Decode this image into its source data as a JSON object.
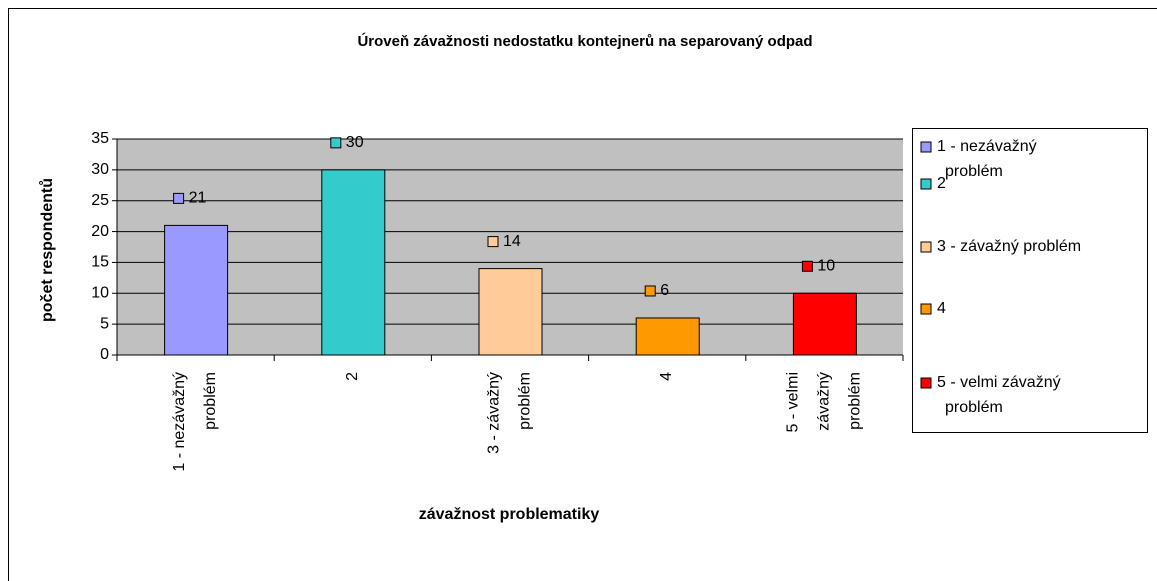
{
  "chart_data": {
    "type": "bar",
    "title": "Úroveň závažnosti nedostatku kontejnerů na separovaný odpad",
    "x_label": "závažnost problematiky",
    "y_label": "počet respondentů",
    "categories": [
      "1 - nezávažný problém",
      "2",
      "3 - závažný problém",
      "4",
      "5 - velmi závažný problém"
    ],
    "values": [
      21,
      30,
      14,
      6,
      10
    ],
    "colors": [
      "#9999ff",
      "#33cccc",
      "#ffcc99",
      "#ff9900",
      "#ff0000"
    ],
    "ylim": [
      0,
      35
    ],
    "yticks": [
      0,
      5,
      10,
      15,
      20,
      25,
      30,
      35
    ],
    "grid": true,
    "legend": "right",
    "plot_background": "#c0c0c0"
  }
}
